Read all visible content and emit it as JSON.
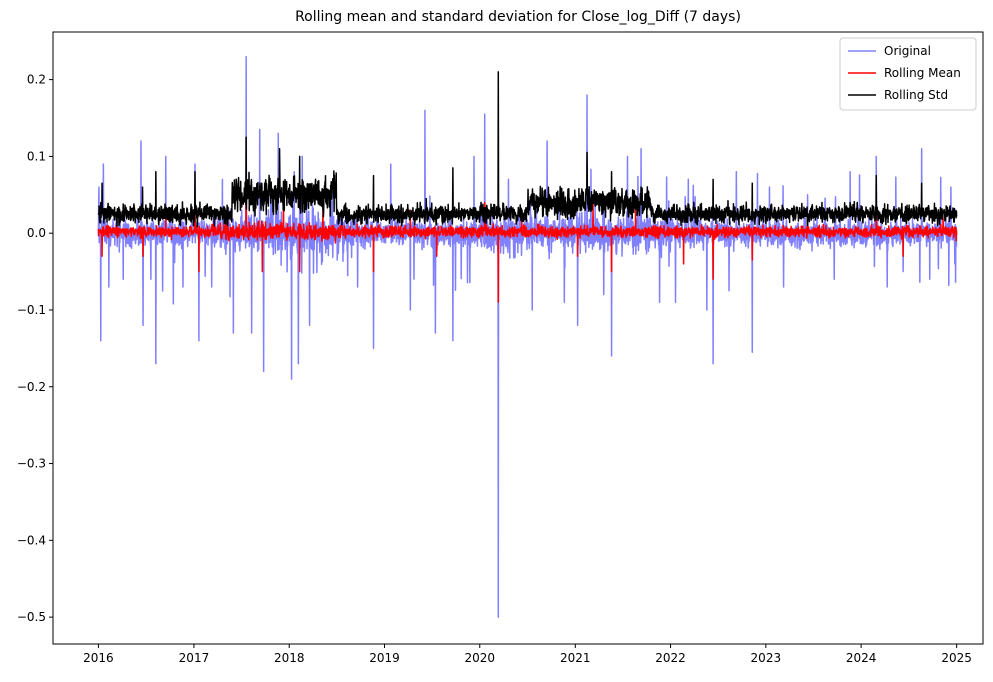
{
  "chart_data": {
    "type": "line",
    "title": "Rolling mean and standard deviation for Close_log_Diff (7 days)",
    "xlabel": "",
    "ylabel": "",
    "x_range": [
      "2016-01-01",
      "2025-01-01"
    ],
    "xlim": [
      "2015-07-11",
      "2025-04-12"
    ],
    "ylim": [
      -0.535,
      0.262
    ],
    "x_ticks": [
      "2016",
      "2017",
      "2018",
      "2019",
      "2020",
      "2021",
      "2022",
      "2023",
      "2024",
      "2025"
    ],
    "y_ticks": [
      "0.2",
      "0.1",
      "0.0",
      "−0.1",
      "−0.2",
      "−0.3",
      "−0.4",
      "−0.5"
    ],
    "y_tick_values": [
      0.2,
      0.1,
      0.0,
      -0.1,
      -0.2,
      -0.3,
      -0.4,
      -0.5
    ],
    "grid": false,
    "legend_position": "top-right",
    "series": [
      {
        "name": "Original",
        "color": "#8080ff",
        "points": [
          [
            "2016-01-03",
            0.06
          ],
          [
            "2016-01-10",
            -0.14
          ],
          [
            "2016-01-20",
            0.09
          ],
          [
            "2016-02-10",
            -0.07
          ],
          [
            "2016-04-05",
            -0.06
          ],
          [
            "2016-06-12",
            0.12
          ],
          [
            "2016-06-20",
            -0.12
          ],
          [
            "2016-07-20",
            -0.06
          ],
          [
            "2016-08-08",
            -0.17
          ],
          [
            "2016-09-15",
            0.1
          ],
          [
            "2016-11-20",
            -0.07
          ],
          [
            "2017-01-05",
            0.09
          ],
          [
            "2017-01-20",
            -0.14
          ],
          [
            "2017-03-10",
            -0.07
          ],
          [
            "2017-04-20",
            0.07
          ],
          [
            "2017-06-01",
            -0.13
          ],
          [
            "2017-07-20",
            0.23
          ],
          [
            "2017-08-10",
            -0.13
          ],
          [
            "2017-09-10",
            0.135
          ],
          [
            "2017-09-25",
            -0.18
          ],
          [
            "2017-11-20",
            0.13
          ],
          [
            "2018-01-10",
            -0.19
          ],
          [
            "2018-01-20",
            0.08
          ],
          [
            "2018-02-05",
            -0.17
          ],
          [
            "2018-02-20",
            0.1
          ],
          [
            "2018-03-20",
            -0.12
          ],
          [
            "2018-06-15",
            0.06
          ],
          [
            "2018-09-20",
            -0.07
          ],
          [
            "2018-11-20",
            -0.15
          ],
          [
            "2019-01-25",
            0.09
          ],
          [
            "2019-04-10",
            -0.1
          ],
          [
            "2019-06-05",
            0.16
          ],
          [
            "2019-07-15",
            -0.13
          ],
          [
            "2019-09-20",
            -0.14
          ],
          [
            "2019-12-10",
            0.1
          ],
          [
            "2020-01-20",
            0.155
          ],
          [
            "2020-03-12",
            -0.5
          ],
          [
            "2020-04-20",
            0.07
          ],
          [
            "2020-07-20",
            -0.1
          ],
          [
            "2020-09-15",
            0.12
          ],
          [
            "2020-11-20",
            -0.09
          ],
          [
            "2021-01-10",
            -0.12
          ],
          [
            "2021-02-15",
            0.18
          ],
          [
            "2021-04-20",
            -0.08
          ],
          [
            "2021-05-20",
            -0.16
          ],
          [
            "2021-07-20",
            0.1
          ],
          [
            "2021-09-10",
            0.11
          ],
          [
            "2021-11-20",
            -0.09
          ],
          [
            "2022-01-20",
            -0.09
          ],
          [
            "2022-03-10",
            0.07
          ],
          [
            "2022-05-20",
            -0.1
          ],
          [
            "2022-06-13",
            -0.17
          ],
          [
            "2022-09-10",
            0.08
          ],
          [
            "2022-11-10",
            -0.155
          ],
          [
            "2023-01-15",
            0.06
          ],
          [
            "2023-03-10",
            -0.07
          ],
          [
            "2023-06-10",
            0.05
          ],
          [
            "2023-09-20",
            -0.06
          ],
          [
            "2023-11-20",
            0.08
          ],
          [
            "2024-02-28",
            0.1
          ],
          [
            "2024-04-10",
            -0.07
          ],
          [
            "2024-06-10",
            -0.05
          ],
          [
            "2024-08-20",
            0.11
          ],
          [
            "2024-09-20",
            -0.06
          ],
          [
            "2024-12-10",
            0.06
          ],
          [
            "2024-12-25",
            -0.04
          ]
        ]
      },
      {
        "name": "Rolling Mean",
        "color": "#ff0000",
        "points": [
          [
            "2016-01-03",
            0.0
          ],
          [
            "2016-01-15",
            -0.03
          ],
          [
            "2016-03-10",
            0.01
          ],
          [
            "2016-06-20",
            -0.03
          ],
          [
            "2016-09-15",
            0.02
          ],
          [
            "2017-01-05",
            0.03
          ],
          [
            "2017-01-20",
            -0.05
          ],
          [
            "2017-05-10",
            0.03
          ],
          [
            "2017-07-20",
            0.07
          ],
          [
            "2017-09-20",
            -0.05
          ],
          [
            "2017-12-10",
            0.04
          ],
          [
            "2018-02-10",
            -0.05
          ],
          [
            "2018-05-10",
            0.03
          ],
          [
            "2018-11-20",
            -0.05
          ],
          [
            "2019-04-10",
            0.03
          ],
          [
            "2019-07-20",
            -0.03
          ],
          [
            "2020-01-20",
            0.04
          ],
          [
            "2020-03-12",
            -0.09
          ],
          [
            "2020-06-10",
            0.02
          ],
          [
            "2021-01-10",
            -0.03
          ],
          [
            "2021-03-10",
            0.04
          ],
          [
            "2021-05-20",
            -0.05
          ],
          [
            "2021-08-20",
            0.03
          ],
          [
            "2022-02-20",
            -0.04
          ],
          [
            "2022-06-13",
            -0.06
          ],
          [
            "2022-11-10",
            -0.035
          ],
          [
            "2023-06-10",
            0.02
          ],
          [
            "2024-02-28",
            0.03
          ],
          [
            "2024-06-10",
            -0.03
          ],
          [
            "2024-11-10",
            0.02
          ],
          [
            "2024-12-30",
            -0.01
          ]
        ]
      },
      {
        "name": "Rolling Std",
        "color": "#000000",
        "points": [
          [
            "2016-01-03",
            0.025
          ],
          [
            "2016-01-15",
            0.065
          ],
          [
            "2016-03-20",
            0.01
          ],
          [
            "2016-06-18",
            0.06
          ],
          [
            "2016-08-08",
            0.08
          ],
          [
            "2016-11-10",
            0.01
          ],
          [
            "2017-01-05",
            0.08
          ],
          [
            "2017-05-10",
            0.01
          ],
          [
            "2017-07-20",
            0.125
          ],
          [
            "2017-09-15",
            0.03
          ],
          [
            "2017-11-25",
            0.11
          ],
          [
            "2018-02-10",
            0.1
          ],
          [
            "2018-05-10",
            0.03
          ],
          [
            "2018-11-20",
            0.075
          ],
          [
            "2019-03-10",
            0.02
          ],
          [
            "2019-06-10",
            0.045
          ],
          [
            "2019-09-20",
            0.085
          ],
          [
            "2019-12-10",
            0.02
          ],
          [
            "2020-03-12",
            0.21
          ],
          [
            "2020-05-10",
            0.02
          ],
          [
            "2020-09-20",
            0.06
          ],
          [
            "2021-02-15",
            0.105
          ],
          [
            "2021-05-20",
            0.08
          ],
          [
            "2021-09-10",
            0.06
          ],
          [
            "2022-02-10",
            0.01
          ],
          [
            "2022-06-13",
            0.07
          ],
          [
            "2022-11-10",
            0.065
          ],
          [
            "2023-06-10",
            0.01
          ],
          [
            "2023-11-20",
            0.04
          ],
          [
            "2024-02-28",
            0.075
          ],
          [
            "2024-08-20",
            0.065
          ],
          [
            "2024-10-20",
            0.01
          ],
          [
            "2024-12-30",
            0.02
          ]
        ]
      }
    ]
  }
}
